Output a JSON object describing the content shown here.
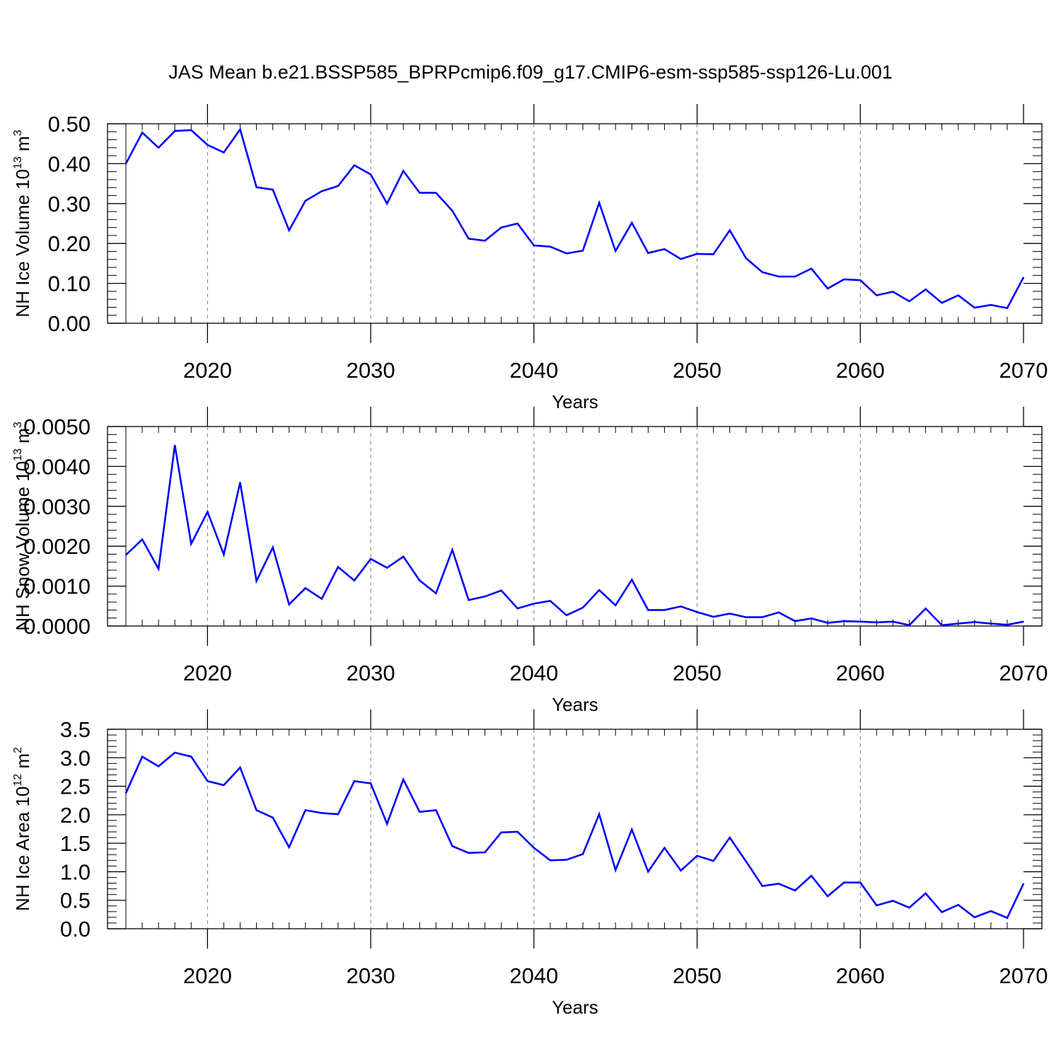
{
  "title": "JAS Mean b.e21.BSSP585_BPRPcmip6.f09_g17.CMIP6-esm-ssp585-ssp126-Lu.001",
  "colors": {
    "line": "#0000ff",
    "axis": "#000000",
    "grid": "#777777"
  },
  "chart_data": [
    {
      "type": "line",
      "title": "JAS Mean b.e21.BSSP585_BPRPcmip6.f09_g17.CMIP6-esm-ssp585-ssp126-Lu.001",
      "xlabel": "Years",
      "ylabel": {
        "pre": "NH Ice Volume 10",
        "exp": "13",
        "unit": " m",
        "unit_exp": "3"
      },
      "xlim": [
        2015,
        2070
      ],
      "ylim": [
        0.0,
        0.5
      ],
      "xticks": [
        "2020",
        "2030",
        "2040",
        "2050",
        "2060",
        "2070"
      ],
      "yticks": [
        "0.00",
        "0.10",
        "0.20",
        "0.30",
        "0.40",
        "0.50"
      ],
      "grid": "dashed vertical at decades",
      "x": [
        2015,
        2016,
        2017,
        2018,
        2019,
        2020,
        2021,
        2022,
        2023,
        2024,
        2025,
        2026,
        2027,
        2028,
        2029,
        2030,
        2031,
        2032,
        2033,
        2034,
        2035,
        2036,
        2037,
        2038,
        2039,
        2040,
        2041,
        2042,
        2043,
        2044,
        2045,
        2046,
        2047,
        2048,
        2049,
        2050,
        2051,
        2052,
        2053,
        2054,
        2055,
        2056,
        2057,
        2058,
        2059,
        2060,
        2061,
        2062,
        2063,
        2064,
        2065,
        2066,
        2067,
        2068,
        2069,
        2070
      ],
      "values": [
        0.4,
        0.478,
        0.44,
        0.482,
        0.484,
        0.447,
        0.428,
        0.486,
        0.341,
        0.335,
        0.233,
        0.307,
        0.331,
        0.344,
        0.396,
        0.373,
        0.3,
        0.382,
        0.327,
        0.327,
        0.282,
        0.212,
        0.207,
        0.24,
        0.25,
        0.195,
        0.192,
        0.175,
        0.182,
        0.302,
        0.181,
        0.252,
        0.176,
        0.186,
        0.161,
        0.174,
        0.173,
        0.233,
        0.163,
        0.128,
        0.117,
        0.117,
        0.137,
        0.087,
        0.11,
        0.108,
        0.07,
        0.079,
        0.055,
        0.085,
        0.051,
        0.07,
        0.039,
        0.046,
        0.038,
        0.115
      ]
    },
    {
      "type": "line",
      "xlabel": "Years",
      "ylabel": {
        "pre": "NH Snow Volume 10",
        "exp": "13",
        "unit": " m",
        "unit_exp": "3"
      },
      "xlim": [
        2015,
        2070
      ],
      "ylim": [
        0.0,
        0.005
      ],
      "xticks": [
        "2020",
        "2030",
        "2040",
        "2050",
        "2060",
        "2070"
      ],
      "yticks": [
        "0.0000",
        "0.0010",
        "0.0020",
        "0.0030",
        "0.0040",
        "0.0050"
      ],
      "grid": "dashed vertical at decades",
      "x": [
        2015,
        2016,
        2017,
        2018,
        2019,
        2020,
        2021,
        2022,
        2023,
        2024,
        2025,
        2026,
        2027,
        2028,
        2029,
        2030,
        2031,
        2032,
        2033,
        2034,
        2035,
        2036,
        2037,
        2038,
        2039,
        2040,
        2041,
        2042,
        2043,
        2044,
        2045,
        2046,
        2047,
        2048,
        2049,
        2050,
        2051,
        2052,
        2053,
        2054,
        2055,
        2056,
        2057,
        2058,
        2059,
        2060,
        2061,
        2062,
        2063,
        2064,
        2065,
        2066,
        2067,
        2068,
        2069,
        2070
      ],
      "values": [
        0.00178,
        0.00217,
        0.00143,
        0.00453,
        0.00206,
        0.00286,
        0.00179,
        0.0036,
        0.00113,
        0.00197,
        0.00054,
        0.00095,
        0.00068,
        0.00148,
        0.00114,
        0.00168,
        0.00146,
        0.00174,
        0.00114,
        0.00082,
        0.00191,
        0.00065,
        0.00074,
        0.00089,
        0.00044,
        0.00056,
        0.00063,
        0.00027,
        0.00046,
        0.0009,
        0.00052,
        0.00116,
        0.0004,
        0.0004,
        0.00049,
        0.00035,
        0.00023,
        0.00031,
        0.00022,
        0.00022,
        0.00034,
        0.00012,
        0.00019,
        8e-05,
        0.00012,
        0.00011,
        9e-05,
        0.00011,
        2e-05,
        0.00044,
        2e-05,
        6e-05,
        0.0001,
        6e-05,
        3e-05,
        0.00011
      ]
    },
    {
      "type": "line",
      "xlabel": "Years",
      "ylabel": {
        "pre": "NH Ice Area 10",
        "exp": "12",
        "unit": " m",
        "unit_exp": "2"
      },
      "xlim": [
        2015,
        2070
      ],
      "ylim": [
        0.0,
        3.5
      ],
      "xticks": [
        "2020",
        "2030",
        "2040",
        "2050",
        "2060",
        "2070"
      ],
      "yticks": [
        "0.0",
        "0.5",
        "1.0",
        "1.5",
        "2.0",
        "2.5",
        "3.0",
        "3.5"
      ],
      "grid": "dashed vertical at decades",
      "x": [
        2015,
        2016,
        2017,
        2018,
        2019,
        2020,
        2021,
        2022,
        2023,
        2024,
        2025,
        2026,
        2027,
        2028,
        2029,
        2030,
        2031,
        2032,
        2033,
        2034,
        2035,
        2036,
        2037,
        2038,
        2039,
        2040,
        2041,
        2042,
        2043,
        2044,
        2045,
        2046,
        2047,
        2048,
        2049,
        2050,
        2051,
        2052,
        2053,
        2054,
        2055,
        2056,
        2057,
        2058,
        2059,
        2060,
        2061,
        2062,
        2063,
        2064,
        2065,
        2066,
        2067,
        2068,
        2069,
        2070
      ],
      "values": [
        2.38,
        3.02,
        2.85,
        3.09,
        3.02,
        2.59,
        2.52,
        2.83,
        2.08,
        1.95,
        1.43,
        2.08,
        2.03,
        2.01,
        2.59,
        2.55,
        1.84,
        2.62,
        2.05,
        2.08,
        1.45,
        1.33,
        1.34,
        1.69,
        1.7,
        1.42,
        1.2,
        1.21,
        1.31,
        2.01,
        1.03,
        1.74,
        1.0,
        1.42,
        1.02,
        1.28,
        1.19,
        1.6,
        1.18,
        0.75,
        0.79,
        0.67,
        0.93,
        0.57,
        0.81,
        0.81,
        0.41,
        0.49,
        0.37,
        0.62,
        0.29,
        0.42,
        0.2,
        0.31,
        0.19,
        0.79
      ]
    }
  ]
}
